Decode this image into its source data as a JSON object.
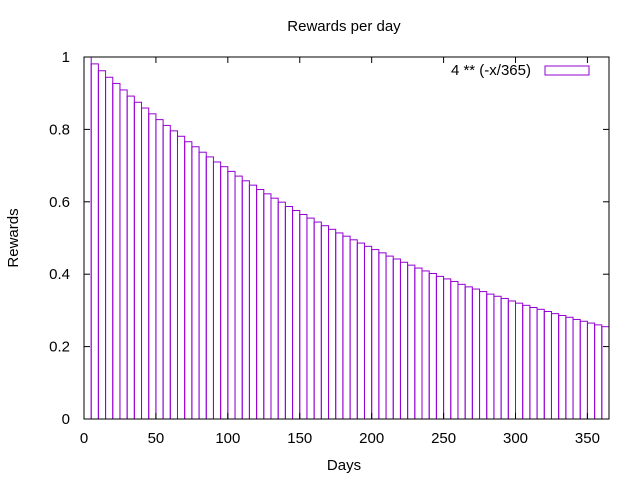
{
  "chart_data": {
    "type": "bar",
    "title": "Rewards per day",
    "xlabel": "Days",
    "ylabel": "Rewards",
    "xlim": [
      0,
      365
    ],
    "ylim": [
      0,
      1
    ],
    "xticks": [
      {
        "value": 0,
        "label": "0"
      },
      {
        "value": 50,
        "label": "50"
      },
      {
        "value": 100,
        "label": "100"
      },
      {
        "value": 150,
        "label": "150"
      },
      {
        "value": 200,
        "label": "200"
      },
      {
        "value": 250,
        "label": "250"
      },
      {
        "value": 300,
        "label": "300"
      },
      {
        "value": 350,
        "label": "350"
      }
    ],
    "yticks": [
      {
        "value": 0,
        "label": "0"
      },
      {
        "value": 0.2,
        "label": "0.2"
      },
      {
        "value": 0.4,
        "label": "0.4"
      },
      {
        "value": 0.6,
        "label": "0.6"
      },
      {
        "value": 0.8,
        "label": "0.8"
      },
      {
        "value": 1,
        "label": "1"
      }
    ],
    "grid": false,
    "legend_position": "top-right",
    "series": [
      {
        "name": "4 ** (-x/365)",
        "color": "#9400d3",
        "bin_width": 5,
        "x": [
          0,
          5,
          10,
          15,
          20,
          25,
          30,
          35,
          40,
          45,
          50,
          55,
          60,
          65,
          70,
          75,
          80,
          85,
          90,
          95,
          100,
          105,
          110,
          115,
          120,
          125,
          130,
          135,
          140,
          145,
          150,
          155,
          160,
          165,
          170,
          175,
          180,
          185,
          190,
          195,
          200,
          205,
          210,
          215,
          220,
          225,
          230,
          235,
          240,
          245,
          250,
          255,
          260,
          265,
          270,
          275,
          280,
          285,
          290,
          295,
          300,
          305,
          310,
          315,
          320,
          325,
          330,
          335,
          340,
          345,
          350,
          355,
          360
        ],
        "values": [
          1.0,
          0.981,
          0.962,
          0.944,
          0.927,
          0.909,
          0.892,
          0.875,
          0.859,
          0.843,
          0.827,
          0.811,
          0.796,
          0.781,
          0.766,
          0.752,
          0.737,
          0.724,
          0.71,
          0.697,
          0.684,
          0.671,
          0.658,
          0.646,
          0.634,
          0.622,
          0.61,
          0.599,
          0.587,
          0.576,
          0.565,
          0.555,
          0.544,
          0.534,
          0.524,
          0.514,
          0.505,
          0.495,
          0.486,
          0.477,
          0.468,
          0.459,
          0.45,
          0.442,
          0.433,
          0.425,
          0.417,
          0.409,
          0.402,
          0.394,
          0.387,
          0.38,
          0.372,
          0.365,
          0.359,
          0.352,
          0.345,
          0.339,
          0.333,
          0.326,
          0.32,
          0.314,
          0.308,
          0.303,
          0.297,
          0.291,
          0.286,
          0.281,
          0.275,
          0.27,
          0.265,
          0.26,
          0.255
        ]
      }
    ]
  }
}
